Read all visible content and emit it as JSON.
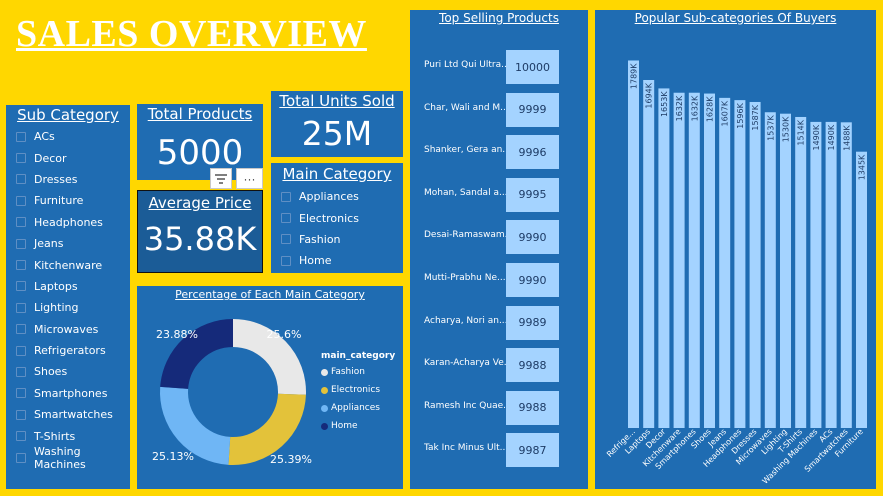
{
  "header": {
    "title": "SALES OVERVIEW"
  },
  "sub_category": {
    "title": "Sub Category",
    "items": [
      "ACs",
      "Decor",
      "Dresses",
      "Furniture",
      "Headphones",
      "Jeans",
      "Kitchenware",
      "Laptops",
      "Lighting",
      "Microwaves",
      "Refrigerators",
      "Shoes",
      "Smartphones",
      "Smartwatches",
      "T-Shirts",
      "Washing Machines"
    ]
  },
  "total_products": {
    "title": "Total Products",
    "value": "5000"
  },
  "total_units": {
    "title": "Total Units Sold",
    "value": "25M"
  },
  "average_price": {
    "title": "Average Price",
    "value": "35.88K"
  },
  "main_category": {
    "title": "Main Category",
    "items": [
      "Appliances",
      "Electronics",
      "Fashion",
      "Home"
    ]
  },
  "visual_header": {
    "filter_icon": "filter-icon",
    "more_icon": "more-options-icon",
    "more_label": "···"
  },
  "donut": {
    "title": "Percentage of Each Main Category",
    "legend_title": "main_category",
    "labels": {
      "fashion": "25.6%",
      "electronics": "25.39%",
      "appliances": "25.13%",
      "home": "23.88%"
    }
  },
  "top_selling": {
    "title": "Top Selling Products",
    "rows": [
      {
        "name": "Puri Ltd Qui Ultra...",
        "value": "10000"
      },
      {
        "name": "Char, Wali and M...",
        "value": "9999"
      },
      {
        "name": "Shanker, Gera an...",
        "value": "9996"
      },
      {
        "name": "Mohan, Sandal a...",
        "value": "9995"
      },
      {
        "name": "Desai-Ramaswam...",
        "value": "9990"
      },
      {
        "name": "Mutti-Prabhu Ne...",
        "value": "9990"
      },
      {
        "name": "Acharya, Nori an...",
        "value": "9989"
      },
      {
        "name": "Karan-Acharya Ve...",
        "value": "9988"
      },
      {
        "name": "Ramesh Inc Quae...",
        "value": "9988"
      },
      {
        "name": "Tak Inc Minus Ult...",
        "value": "9987"
      }
    ]
  },
  "colors": {
    "background": "#FFD700",
    "panel": "#1F6CB2",
    "fashion": "#E8E8E8",
    "electronics": "#E3C23A",
    "appliances": "#6FB6F5",
    "home": "#152A7A",
    "bar": "#A4D3FF"
  },
  "chart_data": [
    {
      "type": "pie",
      "title": "Percentage of Each Main Category",
      "legend_title": "main_category",
      "categories": [
        "Fashion",
        "Electronics",
        "Appliances",
        "Home"
      ],
      "values": [
        25.6,
        25.39,
        25.13,
        23.88
      ],
      "data_labels": [
        "25.6%",
        "25.39%",
        "25.13%",
        "23.88%"
      ],
      "colors": [
        "#E8E8E8",
        "#E3C23A",
        "#6FB6F5",
        "#152A7A"
      ],
      "legend_position": "right"
    },
    {
      "type": "bar",
      "title": "Popular Sub-categories Of Buyers",
      "categories": [
        "Refrige...",
        "Laptops",
        "Decor",
        "Kitchenware",
        "Smartphones",
        "Shoes",
        "Jeans",
        "Headphones",
        "Dresses",
        "Microwaves",
        "Lighting",
        "T-Shirts",
        "Washing Machines",
        "ACs",
        "Smartwatches",
        "Furniture"
      ],
      "values": [
        1789,
        1694,
        1653,
        1632,
        1632,
        1628,
        1607,
        1596,
        1587,
        1537,
        1530,
        1514,
        1490,
        1490,
        1488,
        1345
      ],
      "data_labels": [
        "1789K",
        "1694K",
        "1653K",
        "1632K",
        "1632K",
        "1628K",
        "1607K",
        "1596K",
        "1587K",
        "1537K",
        "1530K",
        "1514K",
        "1490K",
        "1490K",
        "1488K",
        "1345K"
      ],
      "ylim": [
        0,
        1840
      ],
      "grid": false
    }
  ]
}
